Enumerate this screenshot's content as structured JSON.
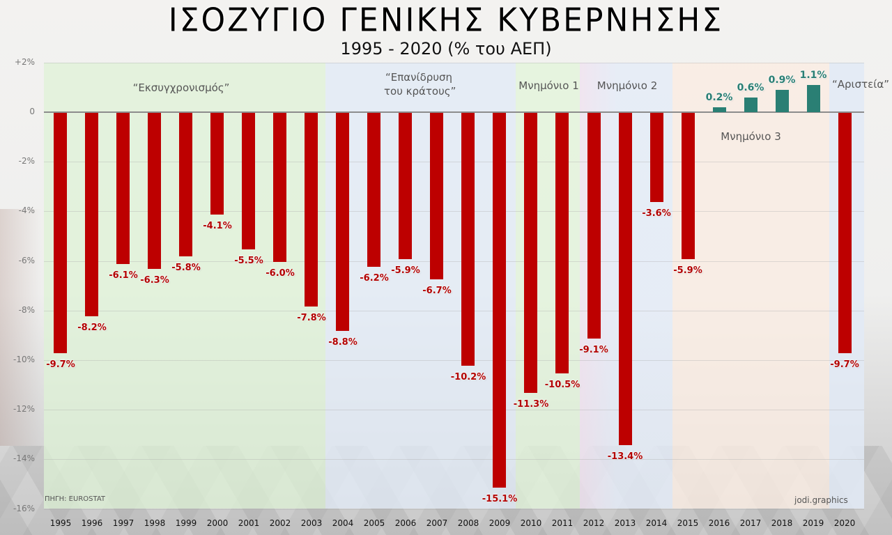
{
  "header": {
    "title": "ΙΣΟΖΥΓΙΟ ΓΕΝΙΚΗΣ ΚΥΒΕΡΝΗΣΗΣ",
    "subtitle": "1995 - 2020 (% του ΑΕΠ)"
  },
  "footer": {
    "source": "ΠΗΓΗ: EUROSTAT",
    "credit": "jodi.graphics"
  },
  "colors": {
    "negative_bar": "#bd0000",
    "positive_bar": "#2a7f74",
    "band_green": "#e6f4df",
    "band_blue": "#e4ecf6",
    "band_pink": "#f0e6ee",
    "band_peach": "#f8ece3"
  },
  "bands": [
    {
      "label": "“Εκσυγχρονισμός”",
      "from": 1995,
      "to": 2003,
      "color": "green"
    },
    {
      "label": "“Επανίδρυση του κράτους”",
      "from": 2004,
      "to": 2009,
      "color": "blue"
    },
    {
      "label": "Μνημόνιο 1",
      "from": 2010,
      "to": 2011,
      "color": "green"
    },
    {
      "label": "Μνημόνιο 2",
      "from": 2012,
      "to": 2014,
      "color": "pink-blue"
    },
    {
      "label": "Μνημόνιο 3",
      "from": 2015,
      "to": 2019,
      "color": "peach"
    },
    {
      "label": "“Αριστεία”",
      "from": 2020,
      "to": 2020,
      "color": "blue"
    }
  ],
  "band_text": {
    "b0": "“Εκσυγχρονισμός”",
    "b1_line1": "“Επανίδρυση",
    "b1_line2": "του κράτους”",
    "b2": "Μνημόνιο 1",
    "b3": "Μνημόνιο 2",
    "b4": "Μνημόνιο 3",
    "b5": "“Αριστεία”"
  },
  "y_ticks": [
    "+2%",
    "0",
    "-2%",
    "-4%",
    "-6%",
    "-8%",
    "-10%",
    "-12%",
    "-14%",
    "-16%"
  ],
  "chart_data": {
    "type": "bar",
    "title": "ΙΣΟΖΥΓΙΟ ΓΕΝΙΚΗΣ ΚΥΒΕΡΝΗΣΗΣ",
    "subtitle": "1995 - 2020 (% του ΑΕΠ)",
    "xlabel": "",
    "ylabel": "% του ΑΕΠ",
    "ylim": [
      -16,
      2
    ],
    "grid": true,
    "categories": [
      "1995",
      "1996",
      "1997",
      "1998",
      "1999",
      "2000",
      "2001",
      "2002",
      "2003",
      "2004",
      "2005",
      "2006",
      "2007",
      "2008",
      "2009",
      "2010",
      "2011",
      "2012",
      "2013",
      "2014",
      "2015",
      "2016",
      "2017",
      "2018",
      "2019",
      "2020"
    ],
    "values": [
      -9.7,
      -8.2,
      -6.1,
      -6.3,
      -5.8,
      -4.1,
      -5.5,
      -6.0,
      -7.8,
      -8.8,
      -6.2,
      -5.9,
      -6.7,
      -10.2,
      -15.1,
      -11.3,
      -10.5,
      -9.1,
      -13.4,
      -3.6,
      -5.9,
      0.2,
      0.6,
      0.9,
      1.1,
      -9.7
    ],
    "labels": [
      "-9.7%",
      "-8.2%",
      "-6.1%",
      "-6.3%",
      "-5.8%",
      "-4.1%",
      "-5.5%",
      "-6.0%",
      "-7.8%",
      "-8.8%",
      "-6.2%",
      "-5.9%",
      "-6.7%",
      "-10.2%",
      "-15.1%",
      "-11.3%",
      "-10.5%",
      "-9.1%",
      "-13.4%",
      "-3.6%",
      "-5.9%",
      "0.2%",
      "0.6%",
      "0.9%",
      "1.1%",
      "-9.7%"
    ],
    "annotations": [
      "“Εκσυγχρονισμός”",
      "“Επανίδρυση του κράτους”",
      "Μνημόνιο 1",
      "Μνημόνιο 2",
      "Μνημόνιο 3",
      "“Αριστεία”"
    ],
    "source": "ΠΗΓΗ: EUROSTAT",
    "credit": "jodi.graphics"
  }
}
